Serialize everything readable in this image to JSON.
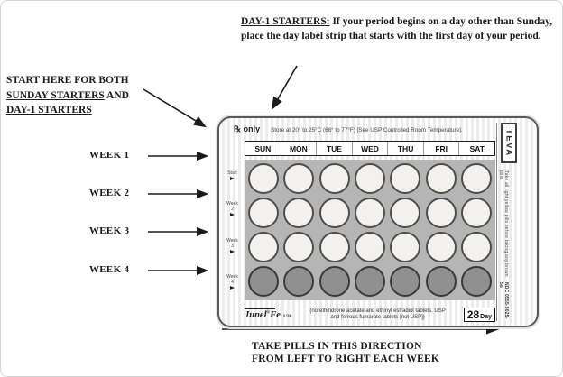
{
  "annotations": {
    "day1_note": {
      "heading": "DAY-1 STARTERS:",
      "body": "If your period begins on a day other than Sunday, place the day label strip that starts with the first day of your period."
    },
    "start_note": {
      "line1": "START HERE FOR BOTH",
      "line2_underlined": "SUNDAY STARTERS",
      "line2_rest": " AND",
      "line3_underlined": "DAY-1 STARTERS"
    },
    "week_labels": [
      "WEEK 1",
      "WEEK 2",
      "WEEK 3",
      "WEEK 4"
    ],
    "bottom_caption_line1": "TAKE PILLS IN THIS DIRECTION",
    "bottom_caption_line2": "FROM LEFT TO RIGHT EACH WEEK"
  },
  "pack": {
    "rx_label": "℞ only",
    "storage_text": "Store at 20° to 25°C (68° to 77°F) [See USP Controlled Room Temperature].",
    "day_headers": [
      "SUN",
      "MON",
      "TUE",
      "WED",
      "THU",
      "FRI",
      "SAT"
    ],
    "pills_per_row": 7,
    "rows": [
      {
        "label_top": "Start",
        "label_num": "",
        "pill_type": "active"
      },
      {
        "label_top": "Week",
        "label_num": "2",
        "pill_type": "active"
      },
      {
        "label_top": "Week",
        "label_num": "3",
        "pill_type": "active"
      },
      {
        "label_top": "Week",
        "label_num": "4",
        "pill_type": "iron"
      }
    ],
    "brand": {
      "name": "Junel",
      "reg": "®",
      "suffix": "Fe",
      "strength": "1/20"
    },
    "description_line1": "(norethindrone acetate and ethinyl estradiol tablets, USP",
    "description_line2": "and ferrous fumarate tablets [not USP])",
    "count_badge": {
      "number": "28",
      "unit": "Day"
    },
    "manufacturer": "TEVA",
    "side_text": "Take all light yellow pills before taking any brown pills.",
    "side_ndc": "NDC 0555-9025-58",
    "colors": {
      "blister_bg": "#b5b5b5",
      "active_pill": "#f2f1ee",
      "iron_pill": "#909090"
    }
  }
}
